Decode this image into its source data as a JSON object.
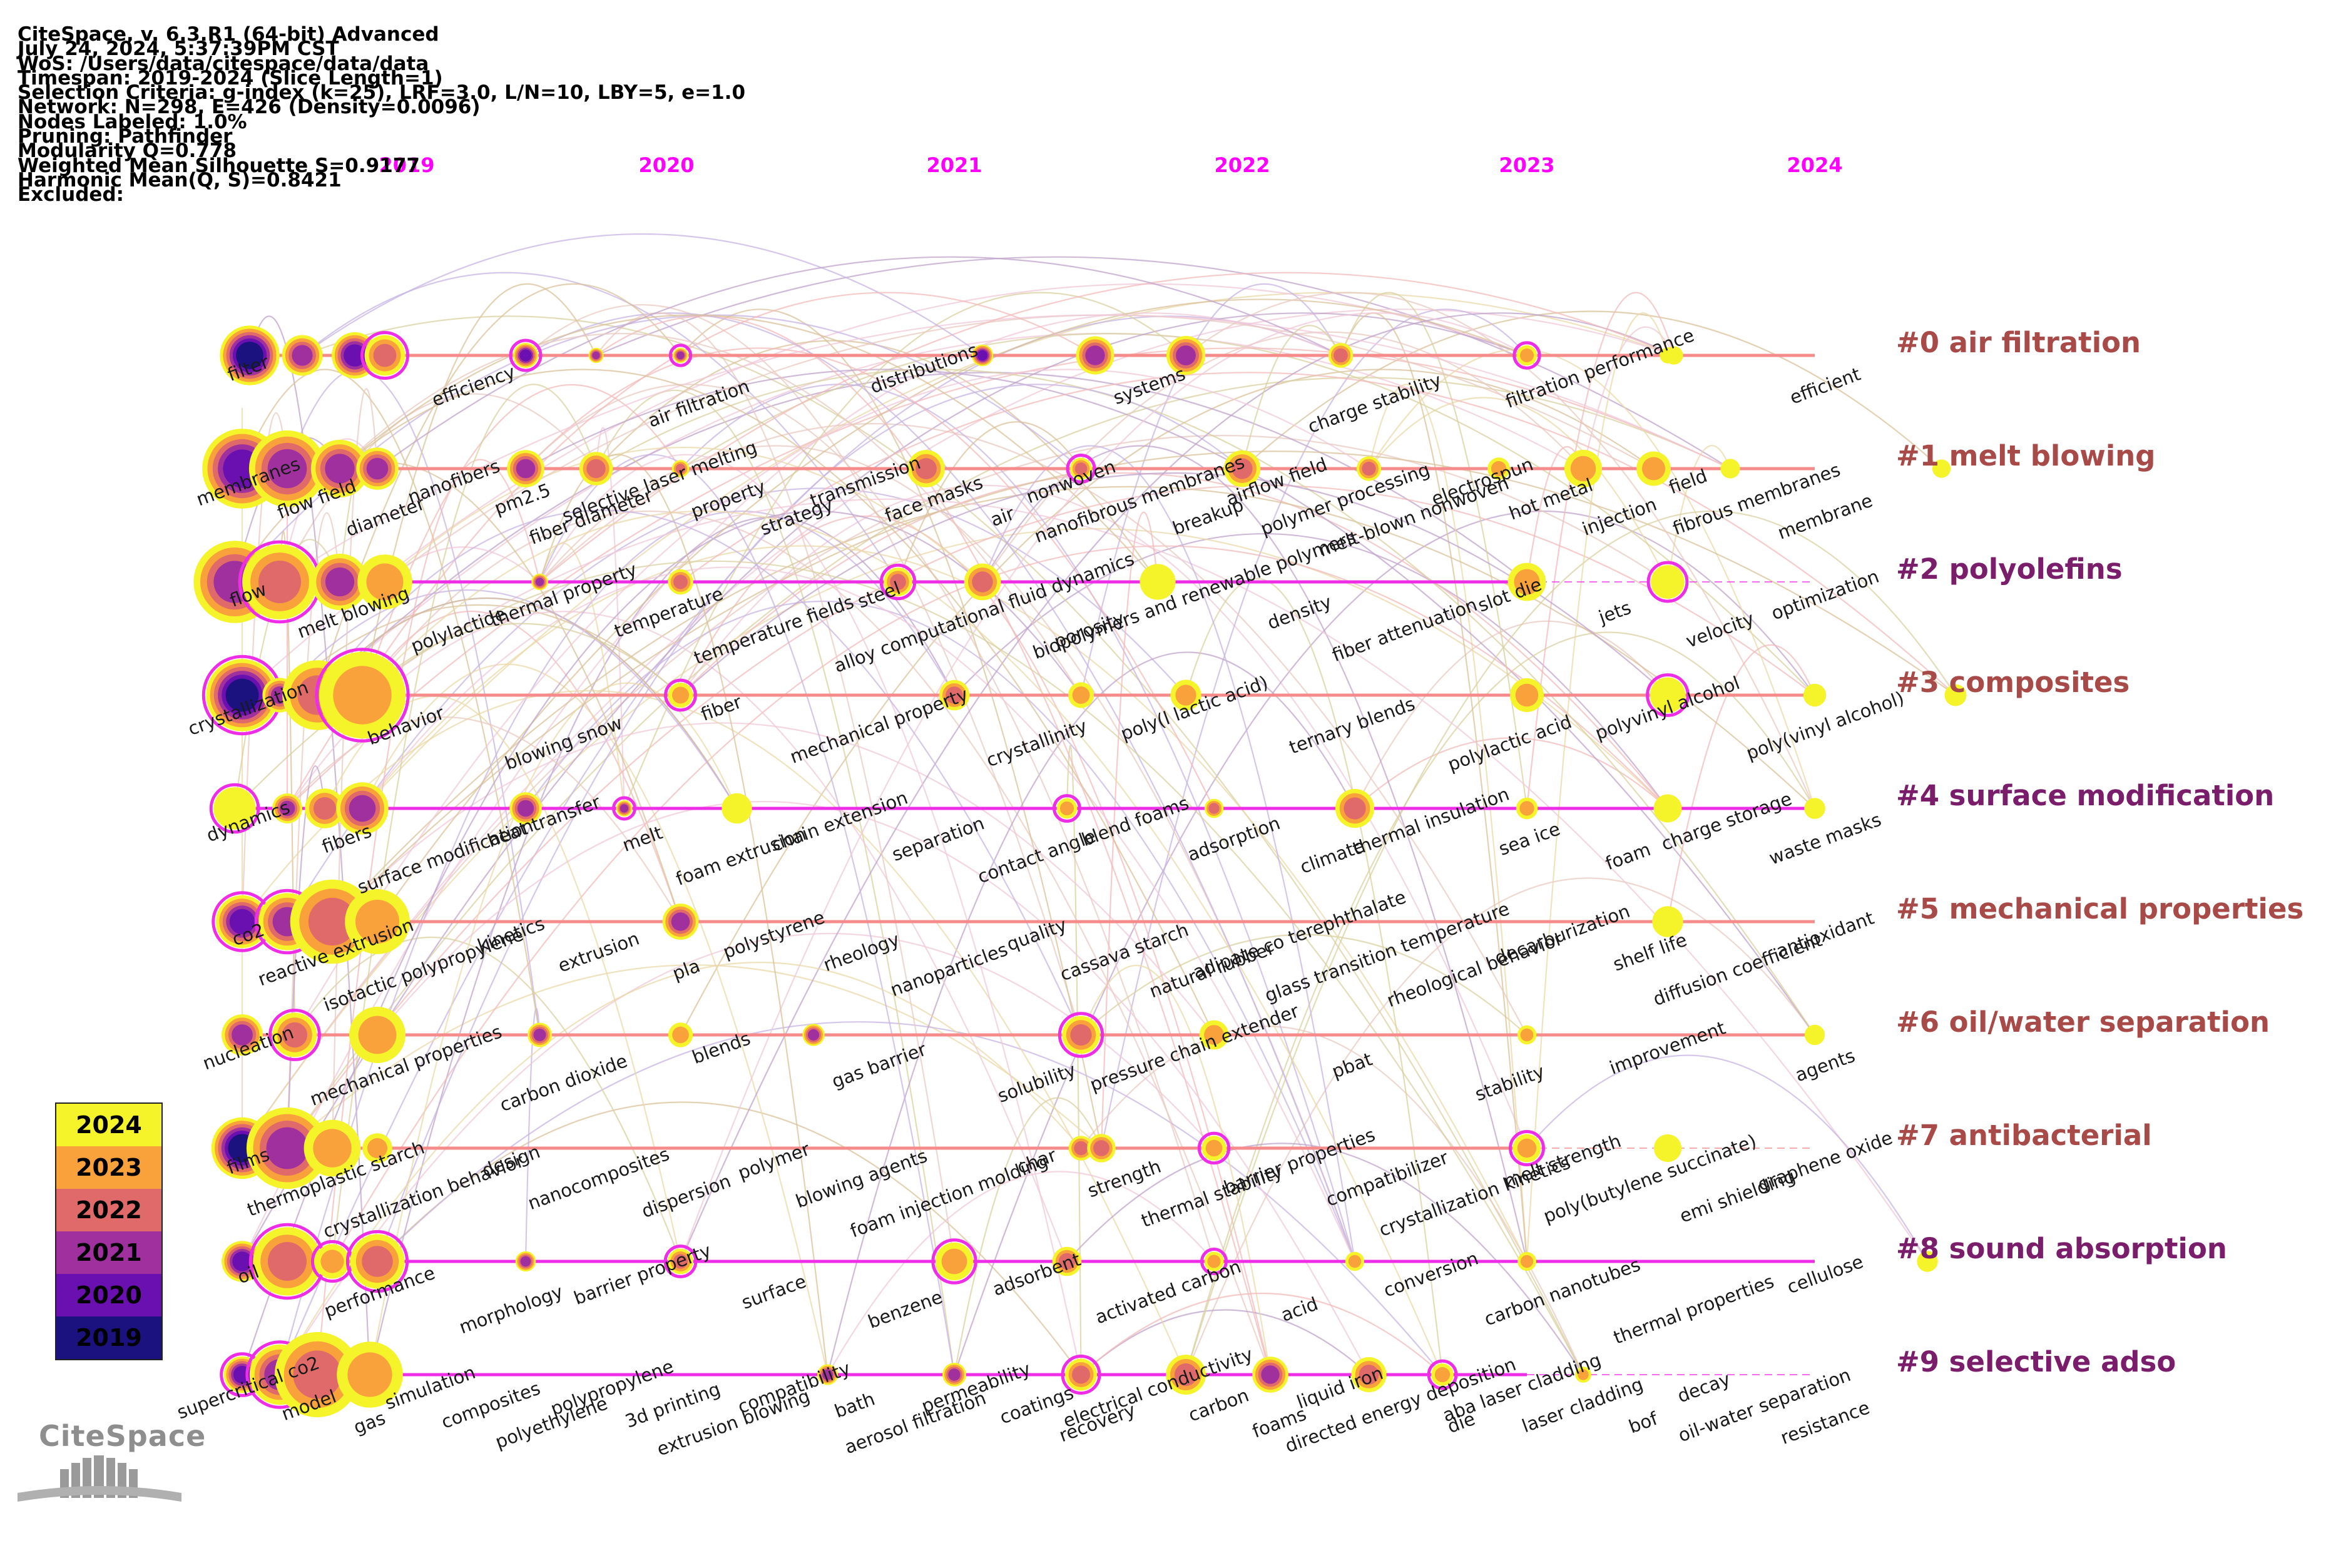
{
  "header": {
    "lines": [
      "CiteSpace, v. 6.3.R1 (64-bit) Advanced",
      "July 24, 2024, 5:37:39PM CST",
      "WoS: /Users/data/citespace/data/data",
      "Timespan: 2019-2024 (Slice Length=1)",
      "Selection Criteria: g-index (k=25), LRF=3.0, L/N=10, LBY=5, e=1.0",
      "Network: N=298, E=426 (Density=0.0096)",
      "Nodes Labeled: 1.0%",
      "Pruning: Pathfinder",
      "Modularity Q=0.778",
      "Weighted Mean Silhouette S=0.9177",
      "Harmonic Mean(Q, S)=0.8421",
      "Excluded:"
    ]
  },
  "years": [
    "2019",
    "2020",
    "2021",
    "2022",
    "2023",
    "2024"
  ],
  "year_colors": {
    "2019": "#1b1280",
    "2020": "#6a0fb0",
    "2021": "#a0309e",
    "2022": "#e06a6a",
    "2023": "#f9a13a",
    "2024": "#f5f32a"
  },
  "colors": {
    "year_label": "#ff00ff",
    "timeline_pink": "#f58b8b",
    "timeline_magenta": "#ee2ee6",
    "cluster_label_brown": "#a84a48",
    "cluster_label_purple": "#7a1e6c"
  },
  "legend": {
    "entries": [
      {
        "year": "2024",
        "color": "#f5f32a"
      },
      {
        "year": "2023",
        "color": "#f9a13a"
      },
      {
        "year": "2022",
        "color": "#e06a6a"
      },
      {
        "year": "2021",
        "color": "#a0309e"
      },
      {
        "year": "2020",
        "color": "#6a0fb0"
      },
      {
        "year": "2019",
        "color": "#1b1280"
      }
    ]
  },
  "logo": {
    "text": "CiteSpace",
    "icon": "citespace-books-logo"
  },
  "clusters": [
    {
      "label": "#0 air filtration",
      "color": "#a84a48",
      "line": "pink",
      "dashed": false,
      "nodes": [
        [
          "2019",
          0.1,
          0
        ],
        [
          "2019",
          0.45,
          2
        ],
        [
          "2019",
          0.8,
          1
        ],
        [
          "2019",
          1.0,
          3
        ],
        [
          "2020",
          0.0,
          1
        ],
        [
          "2020",
          0.25,
          2
        ],
        [
          "2020",
          0.55,
          2
        ],
        [
          "2021",
          0.6,
          1
        ],
        [
          "2021",
          1.0,
          2
        ],
        [
          "2022",
          0.3,
          2
        ],
        [
          "2022",
          0.85,
          3
        ],
        [
          "2023",
          0.5,
          4
        ],
        [
          "2023",
          1.0,
          5
        ],
        [
          "2024",
          0.0,
          6
        ]
      ],
      "labels": [
        "filter",
        "efficiency",
        "air filtration",
        "distributions",
        "systems",
        "charge stability",
        "filtration performance",
        "efficient"
      ]
    },
    {
      "label": "#1 melt blowing",
      "color": "#a84a48",
      "line": "pink",
      "dashed": false,
      "nodes": [
        [
          "2019",
          0.05,
          1
        ],
        [
          "2019",
          0.35,
          2
        ],
        [
          "2019",
          0.7,
          2
        ],
        [
          "2019",
          0.95,
          2
        ],
        [
          "2020",
          0.0,
          2
        ],
        [
          "2020",
          0.25,
          3
        ],
        [
          "2020",
          0.55,
          3
        ],
        [
          "2021",
          0.4,
          3
        ],
        [
          "2021",
          0.95,
          3
        ],
        [
          "2022",
          0.5,
          3
        ],
        [
          "2022",
          0.95,
          3
        ],
        [
          "2023",
          0.4,
          4
        ],
        [
          "2023",
          0.7,
          4
        ],
        [
          "2023",
          0.95,
          4
        ],
        [
          "2024",
          0.2,
          6
        ],
        [
          "2024",
          0.95,
          6
        ]
      ],
      "labels": [
        "membranes",
        "flow field",
        "diameter",
        "nanofibers",
        "pm2.5",
        "fiber diameter",
        "selective laser melting",
        "property",
        "strategy",
        "transmission",
        "face masks",
        "air",
        "nonwoven",
        "nanofibrous membranes",
        "breakup",
        "airflow field",
        "polymer processing",
        "melt-blown nonwoven",
        "electrospun",
        "hot metal",
        "injection",
        "field",
        "fibrous membranes",
        "membrane"
      ]
    },
    {
      "label": "#2 polyolefins",
      "color": "#7a1e6c",
      "line": "magenta",
      "dashed": true,
      "nodes": [
        [
          "2019",
          0.0,
          2
        ],
        [
          "2019",
          0.3,
          3
        ],
        [
          "2019",
          0.7,
          2
        ],
        [
          "2019",
          1.0,
          4
        ],
        [
          "2020",
          0.05,
          2
        ],
        [
          "2020",
          0.55,
          3
        ],
        [
          "2021",
          0.3,
          3
        ],
        [
          "2021",
          0.6,
          3
        ],
        [
          "2022",
          0.2,
          5
        ],
        [
          "2023",
          0.5,
          4
        ],
        [
          "2023",
          1.0,
          5
        ]
      ],
      "labels": [
        "flow",
        "melt blowing",
        "polylactide",
        "thermal property",
        "temperature",
        "temperature fields",
        "steel",
        "alloy computational fluid dynamics",
        "porosity",
        "biopolymers and renewable polymers",
        "density",
        "fiber attenuation",
        "slot die",
        "jets",
        "velocity",
        "optimization"
      ]
    },
    {
      "label": "#3 composites",
      "color": "#a84a48",
      "line": "pink",
      "dashed": false,
      "nodes": [
        [
          "2019",
          0.05,
          0
        ],
        [
          "2019",
          0.3,
          2
        ],
        [
          "2019",
          0.55,
          3
        ],
        [
          "2019",
          0.85,
          4
        ],
        [
          "2020",
          0.55,
          4
        ],
        [
          "2021",
          0.5,
          3
        ],
        [
          "2021",
          0.95,
          4
        ],
        [
          "2022",
          0.3,
          4
        ],
        [
          "2023",
          0.5,
          4
        ],
        [
          "2023",
          1.0,
          5
        ],
        [
          "2024",
          0.5,
          6
        ],
        [
          "2024",
          1.0,
          6
        ]
      ],
      "labels": [
        "crystallization",
        "behavior",
        "blowing snow",
        "fiber",
        "mechanical property",
        "crystallinity",
        "poly(l lactic acid)",
        "ternary blends",
        "polylactic acid",
        "polyvinyl alcohol",
        "poly(vinyl alcohol)"
      ]
    },
    {
      "label": "#4 surface modification",
      "color": "#7a1e6c",
      "line": "magenta",
      "dashed": false,
      "nodes": [
        [
          "2019",
          0.0,
          6
        ],
        [
          "2019",
          0.35,
          2
        ],
        [
          "2019",
          0.6,
          3
        ],
        [
          "2019",
          0.85,
          2
        ],
        [
          "2020",
          0.0,
          2
        ],
        [
          "2020",
          0.35,
          2
        ],
        [
          "2020",
          0.75,
          5
        ],
        [
          "2021",
          0.9,
          4
        ],
        [
          "2022",
          0.4,
          3
        ],
        [
          "2022",
          0.9,
          3
        ],
        [
          "2023",
          0.5,
          4
        ],
        [
          "2023",
          1.0,
          5
        ],
        [
          "2024",
          0.5,
          6
        ]
      ],
      "labels": [
        "dynamics",
        "fibers",
        "surface modification",
        "heat transfer",
        "melt",
        "foam extrusion",
        "chain extension",
        "separation",
        "contact angle",
        "blend foams",
        "adsorption",
        "climate",
        "thermal insulation",
        "sea ice",
        "foam",
        "charge storage",
        "waste masks"
      ]
    },
    {
      "label": "#5 mechanical properties",
      "color": "#a84a48",
      "line": "pink",
      "dashed": false,
      "nodes": [
        [
          "2019",
          0.05,
          1
        ],
        [
          "2019",
          0.35,
          2
        ],
        [
          "2019",
          0.65,
          3
        ],
        [
          "2019",
          0.95,
          4
        ],
        [
          "2020",
          0.55,
          2
        ],
        [
          "2023",
          1.0,
          6
        ]
      ],
      "labels": [
        "co2",
        "reactive extrusion",
        "isotactic polypropylene",
        "kinetics",
        "extrusion",
        "pla",
        "polystyrene",
        "rheology",
        "nanoparticles",
        "quality",
        "cassava starch",
        "natural rubber",
        "adipate co terephthalate",
        "glass transition temperature",
        "rheological behavior",
        "decarburization",
        "shelf life",
        "diffusion coefficient",
        "antioxidant"
      ]
    },
    {
      "label": "#6 oil/water separation",
      "color": "#a84a48",
      "line": "pink",
      "dashed": false,
      "nodes": [
        [
          "2019",
          0.05,
          2
        ],
        [
          "2019",
          0.4,
          3
        ],
        [
          "2019",
          0.95,
          4
        ],
        [
          "2020",
          0.05,
          2
        ],
        [
          "2020",
          0.55,
          4
        ],
        [
          "2021",
          0.0,
          2
        ],
        [
          "2021",
          0.95,
          3
        ],
        [
          "2022",
          0.4,
          4
        ],
        [
          "2023",
          0.5,
          4
        ],
        [
          "2024",
          0.5,
          6
        ]
      ],
      "labels": [
        "nucleation",
        "mechanical properties",
        "carbon dioxide",
        "blends",
        "gas barrier",
        "solubility",
        "pressure chain extender",
        "pbat",
        "stability",
        "improvement",
        "agents"
      ]
    },
    {
      "label": "#7 antibacterial",
      "color": "#a84a48",
      "line": "pink",
      "dashed": true,
      "nodes": [
        [
          "2019",
          0.05,
          0
        ],
        [
          "2019",
          0.35,
          2
        ],
        [
          "2019",
          0.65,
          4
        ],
        [
          "2019",
          0.95,
          4
        ],
        [
          "2021",
          0.95,
          3
        ],
        [
          "2022",
          0.0,
          3
        ],
        [
          "2022",
          0.4,
          4
        ],
        [
          "2023",
          0.5,
          4
        ],
        [
          "2023",
          1.0,
          5
        ]
      ],
      "labels": [
        "films",
        "thermoplastic starch",
        "crystallization behavior",
        "design",
        "nanocomposites",
        "dispersion",
        "polymer",
        "blowing agents",
        "foam injection molding",
        "char",
        "strength",
        "thermal stability",
        "barrier properties",
        "compatibilizer",
        "crystallization kinetics",
        "melt strength",
        "poly(butylene succinate)",
        "emi shielding",
        "graphene oxide"
      ]
    },
    {
      "label": "#8 sound absorption",
      "color": "#7a1e6c",
      "line": "magenta",
      "dashed": false,
      "nodes": [
        [
          "2019",
          0.05,
          1
        ],
        [
          "2019",
          0.35,
          3
        ],
        [
          "2019",
          0.65,
          4
        ],
        [
          "2019",
          0.95,
          3
        ],
        [
          "2020",
          0.0,
          2
        ],
        [
          "2020",
          0.55,
          3
        ],
        [
          "2021",
          0.5,
          4
        ],
        [
          "2021",
          0.9,
          3
        ],
        [
          "2022",
          0.4,
          4
        ],
        [
          "2022",
          0.9,
          4
        ],
        [
          "2023",
          0.5,
          4
        ],
        [
          "2024",
          0.9,
          6
        ]
      ],
      "labels": [
        "oil",
        "performance",
        "morphology",
        "barrier property",
        "surface",
        "benzene",
        "adsorbent",
        "activated carbon",
        "acid",
        "conversion",
        "carbon nanotubes",
        "thermal properties",
        "cellulose"
      ]
    },
    {
      "label": "#9 selective adso",
      "color": "#7a1e6c",
      "line": "magenta",
      "dashed": true,
      "nodes": [
        [
          "2019",
          0.05,
          1
        ],
        [
          "2019",
          0.3,
          2
        ],
        [
          "2019",
          0.55,
          3
        ],
        [
          "2019",
          0.9,
          4
        ],
        [
          "2021",
          0.05,
          2
        ],
        [
          "2021",
          0.5,
          2
        ],
        [
          "2021",
          0.95,
          3
        ],
        [
          "2022",
          0.3,
          3
        ],
        [
          "2022",
          0.6,
          2
        ],
        [
          "2022",
          0.95,
          3
        ],
        [
          "2023",
          0.2,
          4
        ],
        [
          "2023",
          0.7,
          4
        ]
      ],
      "labels": [
        "supercritical co2",
        "model",
        "gas",
        "simulation",
        "composites",
        "polyethylene",
        "polypropylene",
        "3d printing",
        "extrusion blowing",
        "compatibility",
        "bath",
        "aerosol filtration",
        "permeability",
        "coatings",
        "recovery",
        "electrical conductivity",
        "carbon",
        "foams",
        "liquid iron",
        "directed energy deposition",
        "die",
        "aba laser cladding",
        "laser cladding",
        "bof",
        "decay",
        "oil-water separation",
        "resistance"
      ]
    }
  ]
}
